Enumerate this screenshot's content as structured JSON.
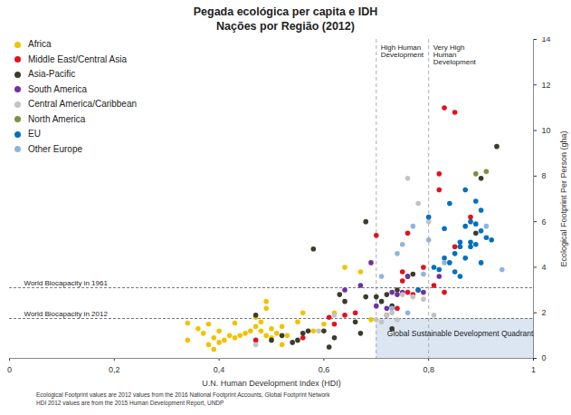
{
  "chart_data": {
    "type": "scatter",
    "title": "Pegada ecológica per capita e IDH",
    "subtitle": "Nações por Região (2012)",
    "x_label": "U.N. Human Development Index (HDI)",
    "y_label": "Ecological Footprint Per Person (gha)",
    "caption": [
      "Ecological Footprint values are 2012 values from the 2016 National Footprint Accounts, Global Footprint Network",
      "HDI 2012 values are from the 2015 Human Development Report, UNDP"
    ],
    "xlim": [
      0,
      1
    ],
    "xticks": [
      0,
      {
        "value": 0.2,
        "label": "0,2"
      },
      {
        "value": 0.4,
        "label": "0,4"
      },
      {
        "value": 0.6,
        "label": "0,6"
      },
      {
        "value": 0.8,
        "label": "0,8"
      },
      1
    ],
    "ylim": [
      0,
      14
    ],
    "yticks": [
      0,
      2,
      4,
      6,
      8,
      10,
      12,
      14
    ],
    "grid": false,
    "legend": "top-left",
    "reference_lines": [
      {
        "axis": "x",
        "value": 0.7,
        "label": "High Human Development"
      },
      {
        "axis": "x",
        "value": 0.8,
        "label": "Very High Human Development"
      },
      {
        "axis": "y",
        "value": 3.1,
        "label": "World Biocapacity in 1961"
      },
      {
        "axis": "y",
        "value": 1.75,
        "label": "World Biocapacity in 2012"
      }
    ],
    "quadrant": {
      "label": "Global Sustainable Development Quadrant",
      "xlim": [
        0.7,
        1
      ],
      "ylim": [
        0,
        1.75
      ],
      "color": "#dce6f2"
    },
    "series": [
      {
        "name": "Africa",
        "color": "#f2c200",
        "x": [
          0.34,
          0.34,
          0.36,
          0.37,
          0.38,
          0.38,
          0.39,
          0.39,
          0.4,
          0.4,
          0.41,
          0.42,
          0.43,
          0.44,
          0.45,
          0.46,
          0.47,
          0.48,
          0.48,
          0.49,
          0.49,
          0.5,
          0.5,
          0.51,
          0.52,
          0.53,
          0.55,
          0.56,
          0.58,
          0.62,
          0.64,
          0.67,
          0.69,
          0.52,
          0.6,
          0.47,
          0.43,
          0.49
        ],
        "values": [
          0.8,
          1.55,
          1.3,
          1.1,
          0.6,
          1.5,
          0.4,
          0.9,
          0.7,
          1.2,
          0.8,
          1.0,
          1.55,
          1.0,
          1.1,
          1.2,
          1.4,
          1.6,
          1.2,
          2.5,
          1.0,
          1.3,
          0.9,
          1.1,
          1.4,
          1.0,
          1.6,
          2.0,
          1.2,
          2.0,
          4.0,
          3.8,
          1.7,
          0.6,
          1.5,
          1.8,
          0.9,
          2.2
        ]
      },
      {
        "name": "Middle East/Central Asia",
        "color": "#e3111b",
        "x": [
          0.47,
          0.56,
          0.61,
          0.62,
          0.64,
          0.66,
          0.7,
          0.72,
          0.74,
          0.75,
          0.75,
          0.76,
          0.77,
          0.78,
          0.79,
          0.82,
          0.82,
          0.83,
          0.85,
          0.85,
          0.88,
          0.81,
          0.76,
          0.83
        ],
        "values": [
          0.8,
          0.9,
          1.8,
          1.5,
          1.9,
          2.0,
          5.4,
          1.9,
          2.2,
          3.8,
          3.4,
          5.5,
          2.8,
          3.0,
          4.0,
          8.1,
          7.4,
          11.0,
          10.8,
          4.9,
          6.2,
          3.2,
          2.9,
          2.9
        ]
      },
      {
        "name": "Asia-Pacific",
        "color": "#3b3b2c",
        "x": [
          0.47,
          0.5,
          0.52,
          0.54,
          0.55,
          0.56,
          0.57,
          0.58,
          0.6,
          0.61,
          0.62,
          0.63,
          0.64,
          0.66,
          0.68,
          0.68,
          0.7,
          0.71,
          0.72,
          0.73,
          0.73,
          0.74,
          0.76,
          0.77,
          0.89,
          0.9,
          0.93,
          0.67
        ],
        "values": [
          1.9,
          0.8,
          1.0,
          0.7,
          0.8,
          1.1,
          1.2,
          4.8,
          1.2,
          0.5,
          0.9,
          2.8,
          2.5,
          1.6,
          6.0,
          2.7,
          2.7,
          2.5,
          2.8,
          2.3,
          1.3,
          3.0,
          3.6,
          3.7,
          5.5,
          7.9,
          9.3,
          1.1
        ]
      },
      {
        "name": "South America",
        "color": "#7030a0",
        "x": [
          0.64,
          0.67,
          0.69,
          0.7,
          0.72,
          0.73,
          0.74,
          0.75,
          0.79,
          0.82,
          0.76
        ],
        "values": [
          3.0,
          3.2,
          4.2,
          2.3,
          2.2,
          2.9,
          2.8,
          2.9,
          2.9,
          3.6,
          3.6
        ]
      },
      {
        "name": "Central America/Caribbean",
        "color": "#c3c3c3",
        "x": [
          0.47,
          0.59,
          0.62,
          0.7,
          0.71,
          0.72,
          0.73,
          0.74,
          0.75,
          0.76,
          0.78,
          0.79,
          0.81,
          0.77,
          0.8
        ],
        "values": [
          0.6,
          1.2,
          1.9,
          1.7,
          1.6,
          1.9,
          2.0,
          1.7,
          2.8,
          7.9,
          6.8,
          2.6,
          1.9,
          2.7,
          6.0
        ]
      },
      {
        "name": "North America",
        "color": "#77933c",
        "x": [
          0.89,
          0.91
        ],
        "values": [
          8.1,
          8.2
        ]
      },
      {
        "name": "EU",
        "color": "#0070c0",
        "x": [
          0.78,
          0.8,
          0.81,
          0.82,
          0.83,
          0.83,
          0.84,
          0.84,
          0.85,
          0.85,
          0.86,
          0.86,
          0.86,
          0.87,
          0.87,
          0.87,
          0.88,
          0.88,
          0.89,
          0.89,
          0.89,
          0.9,
          0.9,
          0.91,
          0.92,
          0.9,
          0.88
        ],
        "values": [
          3.0,
          6.2,
          4.0,
          3.9,
          4.4,
          5.7,
          6.8,
          4.2,
          3.8,
          4.6,
          4.9,
          3.6,
          5.1,
          7.4,
          5.8,
          4.4,
          5.1,
          6.0,
          5.9,
          6.9,
          5.0,
          5.6,
          6.5,
          5.3,
          5.2,
          4.2,
          4.9
        ]
      },
      {
        "name": "Other Europe",
        "color": "#8eb4e3",
        "x": [
          0.71,
          0.73,
          0.74,
          0.75,
          0.77,
          0.79,
          0.8,
          0.83,
          0.91,
          0.94,
          0.76
        ],
        "values": [
          3.6,
          2.2,
          4.6,
          5.0,
          5.8,
          3.7,
          5.2,
          4.2,
          5.8,
          3.9,
          2.0
        ]
      }
    ]
  }
}
